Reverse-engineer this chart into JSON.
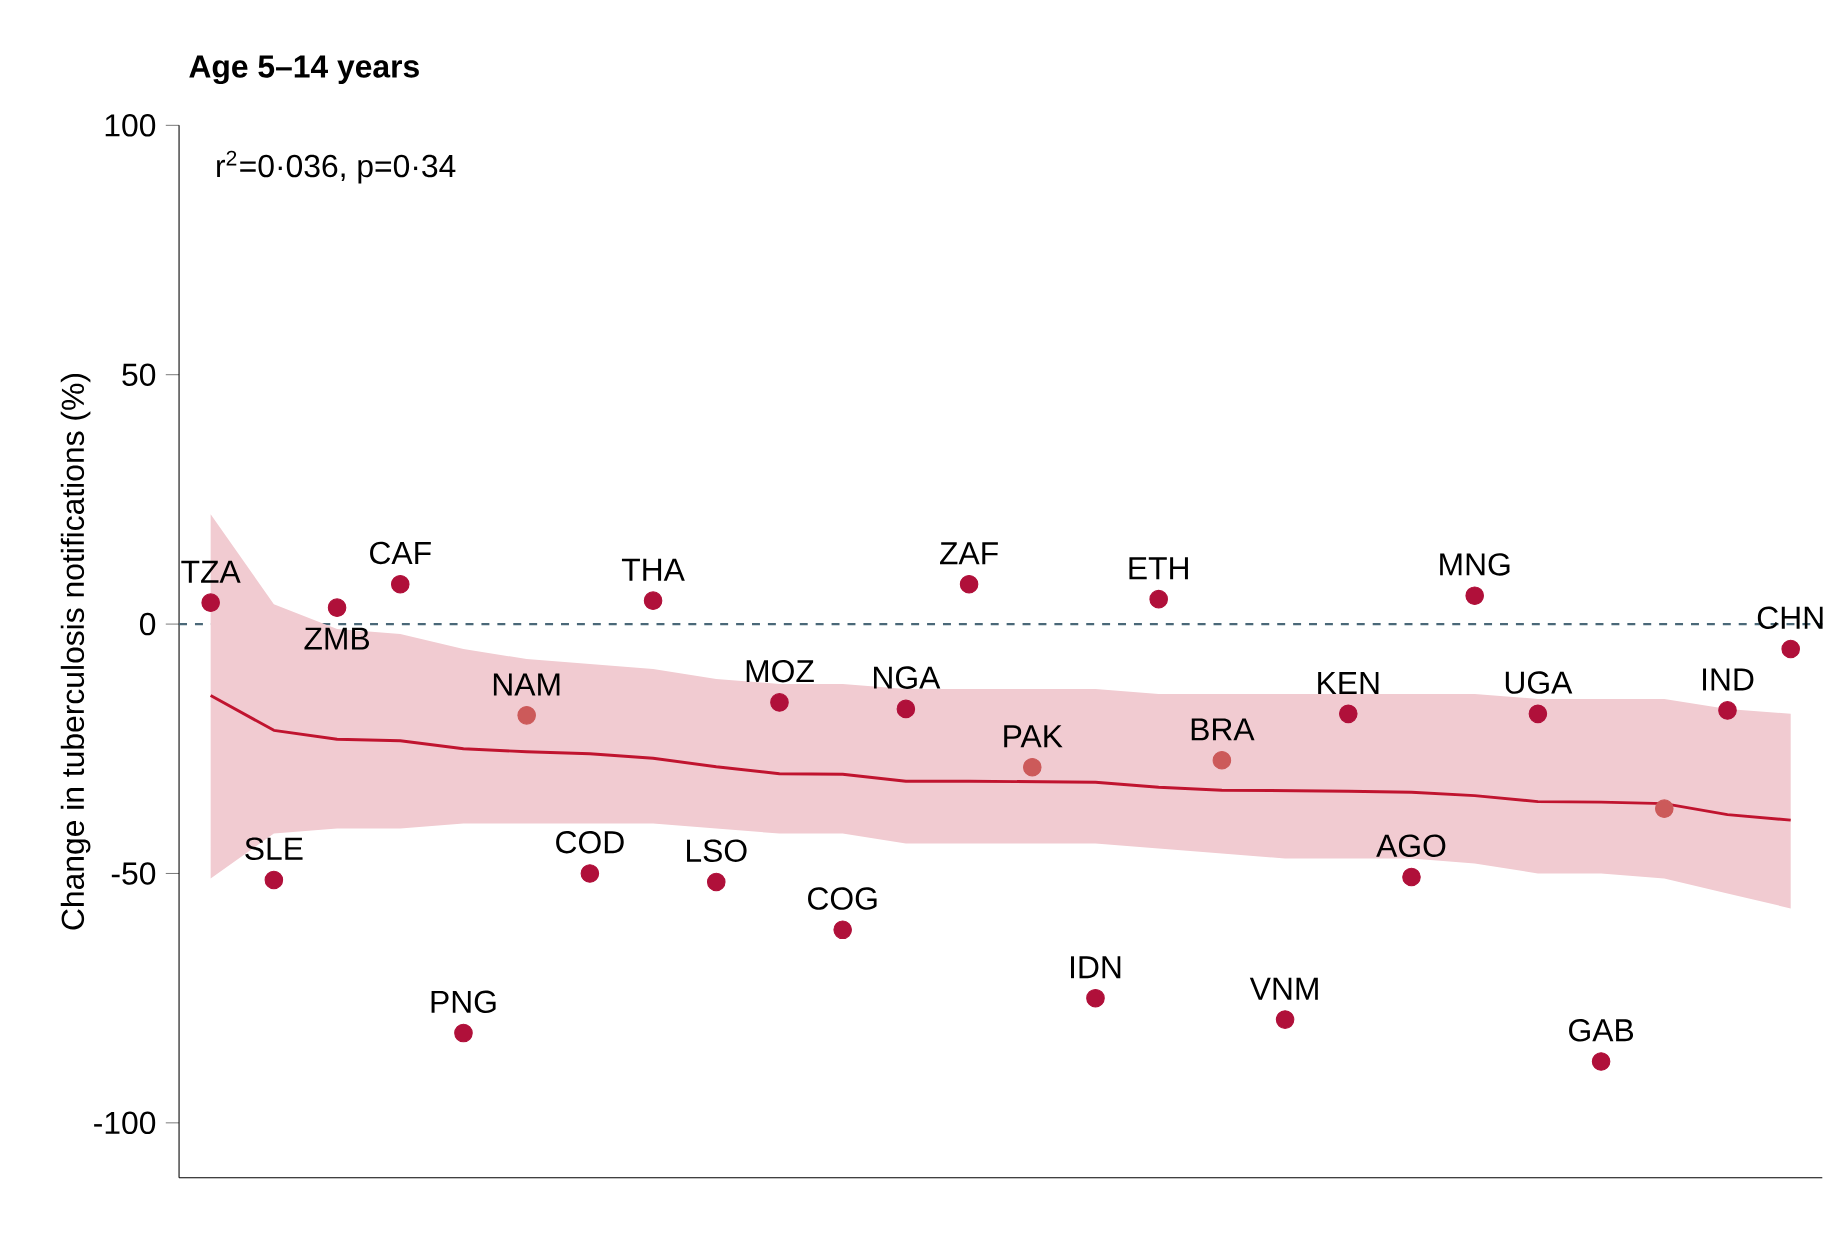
{
  "chart_data": {
    "type": "scatter",
    "title": "Age 5–14 years",
    "ylabel": "Change in tuberculosis notifications (%)",
    "categories": [
      "TZA",
      "SLE",
      "ZMB",
      "CAF",
      "PNG",
      "NAM",
      "COD",
      "THA",
      "LSO",
      "MOZ",
      "COG",
      "NGA",
      "ZAF",
      "PAK",
      "IDN",
      "ETH",
      "BRA",
      "VNM",
      "KEN",
      "AGO",
      "MNG",
      "UGA",
      "GAB",
      null,
      "IND",
      "CHN"
    ],
    "ylim": [
      -111,
      100
    ],
    "yticks": [
      -100,
      -50,
      0,
      50,
      100
    ],
    "tick_labels": "y",
    "grid": false,
    "ref_lines": [
      {
        "axis": "y",
        "value": 0,
        "color": "#4a6878",
        "line_style": "dashed"
      }
    ],
    "series": [
      {
        "marker": "circle",
        "values": [
          4.3,
          -51.3,
          3.3,
          8,
          -82,
          -18.3,
          -50,
          4.7,
          -51.7,
          -15.7,
          -61.3,
          -17,
          8,
          -28.7,
          -75,
          5,
          -27.3,
          -79.3,
          -18,
          -50.7,
          5.7,
          -18,
          -87.7,
          -37,
          -17.3,
          -5
        ],
        "colors": [
          "#b0103a",
          "#b0103a",
          "#b0103a",
          "#b0103a",
          "#b0103a",
          "#cc5a5a",
          "#b0103a",
          "#b0103a",
          "#b0103a",
          "#b0103a",
          "#b0103a",
          "#b0103a",
          "#b0103a",
          "#cc5a5a",
          "#b0103a",
          "#b0103a",
          "#cc5a5a",
          "#b0103a",
          "#b0103a",
          "#b0103a",
          "#b0103a",
          "#b0103a",
          "#b0103a",
          "#cc5a5a",
          "#b0103a",
          "#b0103a"
        ]
      },
      {
        "type": "line",
        "color": "#c0142f",
        "marker": "none",
        "values": [
          -14.3,
          -21.3,
          -23.1,
          -23.4,
          -25.0,
          -25.6,
          -26.0,
          -26.9,
          -28.6,
          -30.0,
          -30.1,
          -31.5,
          -31.5,
          -31.6,
          -31.7,
          -32.7,
          -33.3,
          -33.4,
          -33.5,
          -33.7,
          -34.4,
          -35.6,
          -35.7,
          -36.0,
          -38.2,
          -39.3
        ],
        "upper": [
          22,
          4,
          -1,
          -2,
          -5,
          -7,
          -8,
          -9,
          -11,
          -12,
          -12,
          -13,
          -13,
          -13,
          -13,
          -14,
          -14,
          -14,
          -14,
          -14,
          -14,
          -15,
          -15,
          -15,
          -17,
          -18
        ],
        "lower": [
          -51,
          -42,
          -41,
          -41,
          -40,
          -40,
          -40,
          -40,
          -41,
          -42,
          -42,
          -44,
          -44,
          -44,
          -44,
          -45,
          -46,
          -47,
          -47,
          -47,
          -48,
          -50,
          -50,
          -51,
          -54,
          -57
        ]
      }
    ],
    "annotations": [
      "r$^{2}$=0·036, p=0·34"
    ]
  }
}
